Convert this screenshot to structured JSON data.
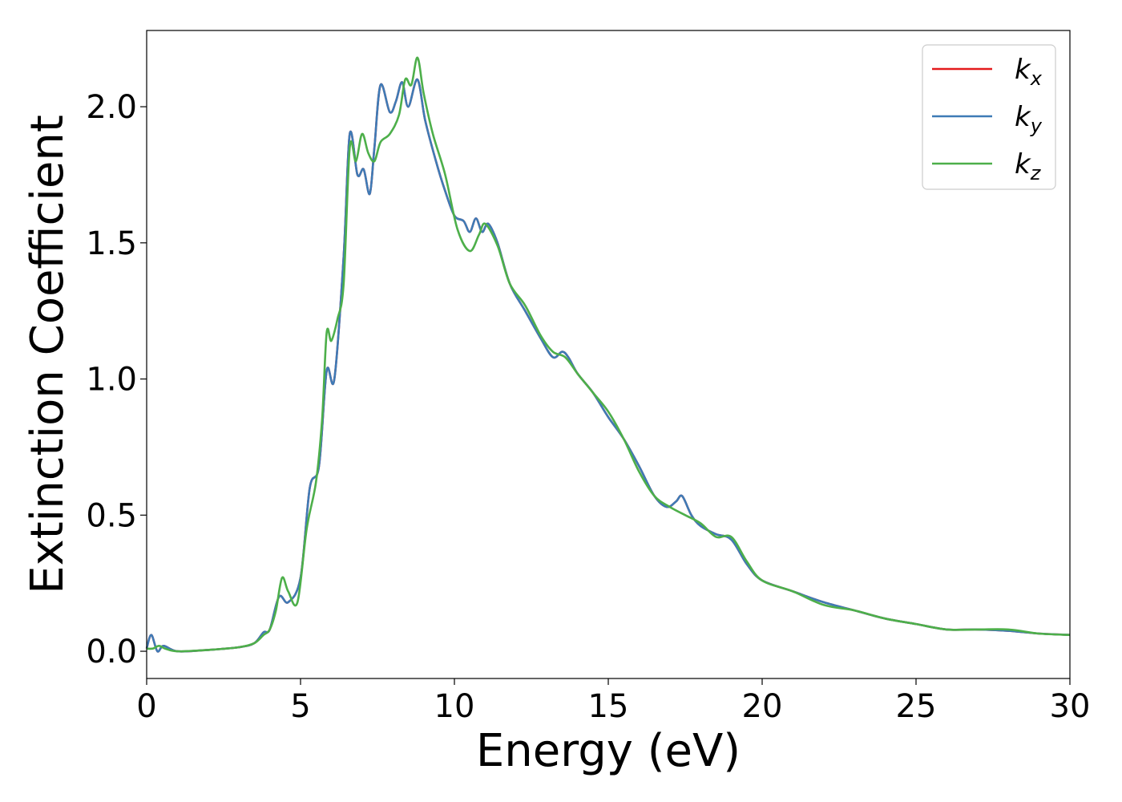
{
  "chart_data": {
    "type": "line",
    "title": "",
    "xlabel": "Energy (eV)",
    "ylabel": "Extinction Coefficient",
    "xlim": [
      0,
      30
    ],
    "ylim": [
      -0.1,
      2.28
    ],
    "xticks": [
      0,
      5,
      10,
      15,
      20,
      25,
      30
    ],
    "xtick_labels": [
      "0",
      "5",
      "10",
      "15",
      "20",
      "25",
      "30"
    ],
    "yticks": [
      0.0,
      0.5,
      1.0,
      1.5,
      2.0
    ],
    "ytick_labels": [
      "0.0",
      "0.5",
      "1.0",
      "1.5",
      "2.0"
    ],
    "grid": false,
    "legend_position": "top-right",
    "series": [
      {
        "name": "k_x",
        "label_base": "k",
        "label_sub": "x",
        "color": "#e41a1c",
        "x": [
          0,
          0.15,
          0.35,
          0.55,
          1,
          2,
          3,
          3.5,
          3.8,
          4,
          4.3,
          4.6,
          5,
          5.3,
          5.6,
          5.85,
          6.1,
          6.4,
          6.6,
          6.85,
          7.05,
          7.25,
          7.4,
          7.6,
          7.9,
          8.1,
          8.3,
          8.5,
          8.8,
          9.05,
          9.4,
          9.7,
          10,
          10.3,
          10.5,
          10.7,
          10.9,
          11.1,
          11.4,
          11.8,
          12.3,
          12.8,
          13.2,
          13.5,
          13.7,
          14,
          14.5,
          15,
          15.5,
          16,
          16.5,
          16.9,
          17.2,
          17.4,
          17.7,
          18,
          18.5,
          19,
          19.5,
          20,
          21,
          22,
          23,
          24,
          25,
          26,
          27,
          28,
          29,
          30
        ],
        "y": [
          0.01,
          0.06,
          0.0,
          0.02,
          0.0,
          0.005,
          0.015,
          0.03,
          0.07,
          0.08,
          0.2,
          0.18,
          0.27,
          0.6,
          0.68,
          1.03,
          1.0,
          1.45,
          1.9,
          1.75,
          1.77,
          1.68,
          1.85,
          2.08,
          1.98,
          2.02,
          2.09,
          2.0,
          2.1,
          1.95,
          1.8,
          1.69,
          1.6,
          1.58,
          1.54,
          1.59,
          1.54,
          1.57,
          1.5,
          1.35,
          1.25,
          1.15,
          1.08,
          1.1,
          1.08,
          1.02,
          0.95,
          0.86,
          0.78,
          0.68,
          0.57,
          0.53,
          0.55,
          0.57,
          0.5,
          0.46,
          0.43,
          0.41,
          0.32,
          0.26,
          0.22,
          0.18,
          0.15,
          0.12,
          0.1,
          0.08,
          0.08,
          0.075,
          0.065,
          0.06
        ]
      },
      {
        "name": "k_y",
        "label_base": "k",
        "label_sub": "y",
        "color": "#3e7bb6",
        "x": [
          0,
          0.15,
          0.35,
          0.55,
          1,
          2,
          3,
          3.5,
          3.8,
          4,
          4.3,
          4.6,
          5,
          5.3,
          5.6,
          5.85,
          6.1,
          6.4,
          6.6,
          6.85,
          7.05,
          7.25,
          7.4,
          7.6,
          7.9,
          8.1,
          8.3,
          8.5,
          8.8,
          9.05,
          9.4,
          9.7,
          10,
          10.3,
          10.5,
          10.7,
          10.9,
          11.1,
          11.4,
          11.8,
          12.3,
          12.8,
          13.2,
          13.5,
          13.7,
          14,
          14.5,
          15,
          15.5,
          16,
          16.5,
          16.9,
          17.2,
          17.4,
          17.7,
          18,
          18.5,
          19,
          19.5,
          20,
          21,
          22,
          23,
          24,
          25,
          26,
          27,
          28,
          29,
          30
        ],
        "y": [
          0.01,
          0.06,
          0.0,
          0.02,
          0.0,
          0.005,
          0.015,
          0.03,
          0.07,
          0.08,
          0.2,
          0.18,
          0.27,
          0.6,
          0.68,
          1.03,
          1.0,
          1.45,
          1.9,
          1.75,
          1.77,
          1.68,
          1.85,
          2.08,
          1.98,
          2.02,
          2.09,
          2.0,
          2.1,
          1.95,
          1.8,
          1.69,
          1.6,
          1.58,
          1.54,
          1.59,
          1.54,
          1.57,
          1.5,
          1.35,
          1.25,
          1.15,
          1.08,
          1.1,
          1.08,
          1.02,
          0.95,
          0.86,
          0.78,
          0.68,
          0.57,
          0.53,
          0.55,
          0.57,
          0.5,
          0.46,
          0.43,
          0.41,
          0.32,
          0.26,
          0.22,
          0.18,
          0.15,
          0.12,
          0.1,
          0.08,
          0.08,
          0.075,
          0.065,
          0.06
        ]
      },
      {
        "name": "k_z",
        "label_base": "k",
        "label_sub": "z",
        "color": "#4daf4a",
        "x": [
          0,
          0.2,
          0.4,
          0.6,
          1,
          2,
          3,
          3.5,
          3.8,
          4,
          4.2,
          4.4,
          4.6,
          4.9,
          5.2,
          5.5,
          5.7,
          5.85,
          6.0,
          6.2,
          6.4,
          6.6,
          6.8,
          7.0,
          7.2,
          7.4,
          7.6,
          7.9,
          8.2,
          8.4,
          8.6,
          8.8,
          9.0,
          9.3,
          9.7,
          10.1,
          10.5,
          10.8,
          11.0,
          11.4,
          11.8,
          12.3,
          12.8,
          13.2,
          13.6,
          14.0,
          14.5,
          15.0,
          15.5,
          16.0,
          16.5,
          17.0,
          17.5,
          18.0,
          18.5,
          19.0,
          19.5,
          20,
          21,
          22,
          23,
          24,
          25,
          26,
          27,
          28,
          29,
          30
        ],
        "y": [
          0.01,
          0.01,
          0.02,
          0.01,
          0.0,
          0.005,
          0.015,
          0.03,
          0.06,
          0.08,
          0.15,
          0.27,
          0.22,
          0.18,
          0.45,
          0.62,
          0.85,
          1.17,
          1.14,
          1.22,
          1.35,
          1.85,
          1.8,
          1.9,
          1.83,
          1.8,
          1.87,
          1.9,
          1.97,
          2.1,
          2.08,
          2.18,
          2.05,
          1.9,
          1.75,
          1.55,
          1.47,
          1.53,
          1.57,
          1.49,
          1.35,
          1.27,
          1.16,
          1.1,
          1.08,
          1.02,
          0.95,
          0.88,
          0.78,
          0.66,
          0.57,
          0.53,
          0.5,
          0.47,
          0.42,
          0.42,
          0.33,
          0.26,
          0.22,
          0.17,
          0.15,
          0.12,
          0.1,
          0.08,
          0.08,
          0.08,
          0.065,
          0.06
        ]
      }
    ]
  }
}
